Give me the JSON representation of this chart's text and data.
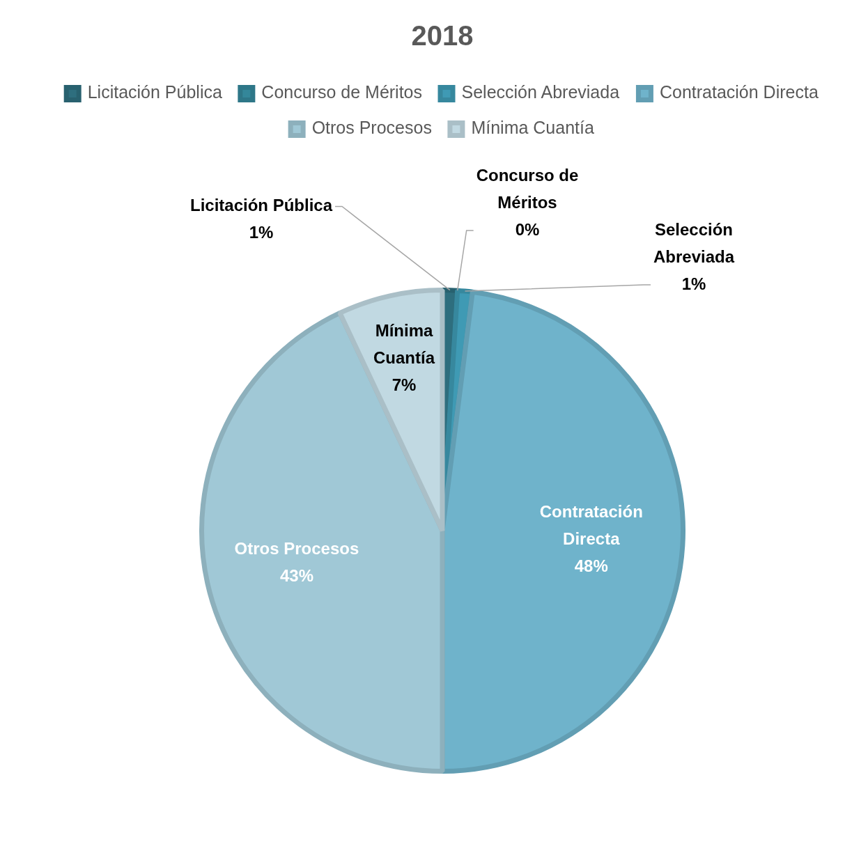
{
  "chart_data": {
    "type": "pie",
    "title": "2018",
    "categories": [
      "Licitación Pública",
      "Concurso de Méritos",
      "Selección Abreviada",
      "Contratación Directa",
      "Otros Procesos",
      "Mínima Cuantía"
    ],
    "values": [
      1,
      0,
      1,
      48,
      43,
      7
    ],
    "value_labels": [
      "1%",
      "0%",
      "1%",
      "48%",
      "43%",
      "7%"
    ],
    "colors": [
      "#2e6e7e",
      "#34879a",
      "#3f9ab4",
      "#6fb3cb",
      "#a0c8d6",
      "#c1d9e2"
    ],
    "legend": "top"
  }
}
